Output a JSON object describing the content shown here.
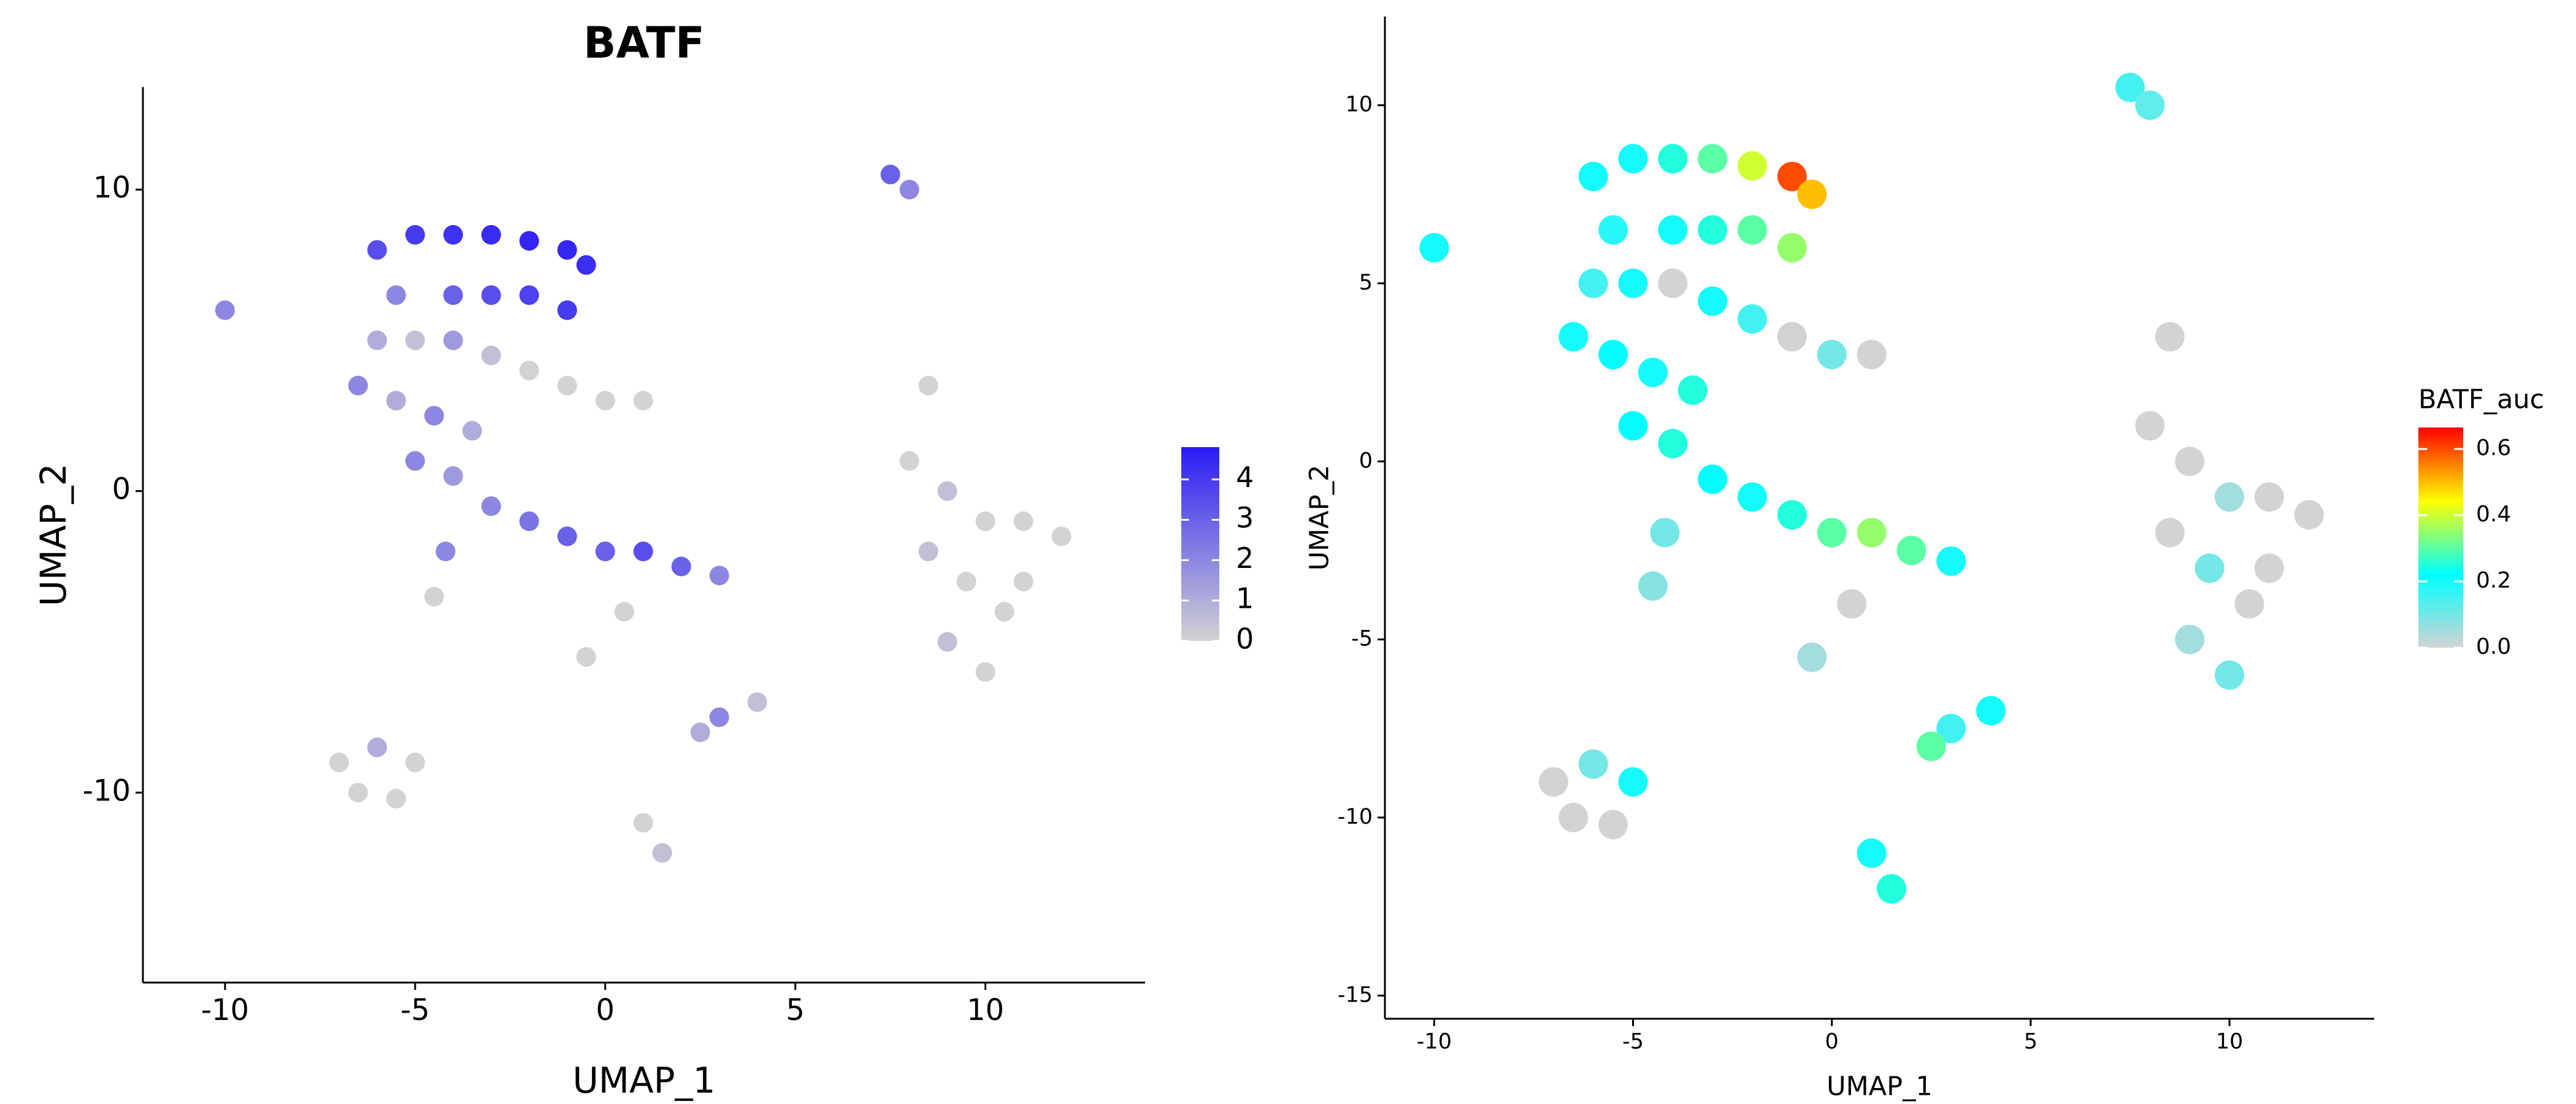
{
  "chart_data": [
    {
      "type": "scatter",
      "title": "BATF",
      "x_label": "UMAP_1",
      "y_label": "UMAP_2",
      "x": [
        -6,
        -5,
        -4,
        -3,
        -2,
        -1,
        -0.5,
        -5.5,
        -4,
        -3,
        -2,
        -1,
        -6,
        -5,
        -4,
        -3,
        -2,
        -1,
        0,
        1,
        -6.5,
        -5.5,
        -4.5,
        -3.5,
        -5,
        -4,
        -3,
        -2,
        -1,
        0,
        1,
        2,
        3,
        -4.2,
        -4.5,
        8,
        9,
        10,
        11,
        12,
        8.5,
        9.5,
        10.5,
        9,
        10,
        11,
        -7,
        -6,
        -5,
        -6.5,
        -5.5,
        3,
        4,
        2.5,
        1,
        1.5,
        7.5,
        8,
        0.5,
        -0.5,
        8.5,
        -10
      ],
      "y": [
        8,
        8.5,
        8.5,
        8.5,
        8.3,
        8,
        7.5,
        6.5,
        6.5,
        6.5,
        6.5,
        6,
        5,
        5,
        5,
        4.5,
        4,
        3.5,
        3,
        3,
        3.5,
        3,
        2.5,
        2,
        1,
        0.5,
        -0.5,
        -1,
        -1.5,
        -2,
        -2,
        -2.5,
        -2.8,
        -2,
        -3.5,
        1,
        0,
        -1,
        -1,
        -1.5,
        -2,
        -3,
        -4,
        -5,
        -6,
        -3,
        -9,
        -8.5,
        -9,
        -10,
        -10.2,
        -7.5,
        -7,
        -8,
        -11,
        -12,
        10.5,
        10,
        -4,
        -5.5,
        3.5,
        6
      ],
      "values": [
        3.5,
        4,
        4.2,
        4.4,
        4.5,
        4.5,
        4.3,
        2,
        3,
        3.5,
        3.8,
        4,
        1,
        0.5,
        1.5,
        0.5,
        0,
        0,
        0,
        0,
        2,
        1,
        2,
        1,
        2,
        1.5,
        2,
        2.5,
        3,
        3,
        3.5,
        3,
        2,
        2,
        0,
        0,
        0.5,
        0,
        0,
        0,
        0.5,
        0,
        0,
        0.5,
        0,
        0,
        0,
        1,
        0,
        0,
        0,
        2,
        0.5,
        1,
        0,
        0.5,
        3,
        2,
        0,
        0,
        0,
        2
      ],
      "xlim": [
        -12.16,
        14.2
      ],
      "ylim": [
        -16.3,
        13.4
      ],
      "xticks": [
        -10,
        -5,
        0,
        5,
        10
      ],
      "yticks": [
        -10,
        0,
        10
      ],
      "colorbar": {
        "lim": [
          0,
          4.8
        ],
        "ticks": [
          0,
          1,
          2,
          3,
          4
        ],
        "colors": [
          "#d3d3d3",
          "#2a1cf5"
        ]
      }
    },
    {
      "type": "scatter",
      "x_label": "UMAP_1",
      "y_label": "UMAP_2",
      "x": [
        -6,
        -5,
        -4,
        -3,
        -2,
        -1,
        -0.5,
        -5.5,
        -4,
        -3,
        -2,
        -1,
        -6,
        -5,
        -4,
        -3,
        -2,
        -1,
        0,
        1,
        -6.5,
        -5.5,
        -4.5,
        -3.5,
        -5,
        -4,
        -3,
        -2,
        -1,
        0,
        1,
        2,
        3,
        -4.2,
        -4.5,
        8,
        9,
        10,
        11,
        12,
        8.5,
        9.5,
        10.5,
        9,
        10,
        11,
        -7,
        -6,
        -5,
        -6.5,
        -5.5,
        3,
        4,
        2.5,
        1,
        1.5,
        7.5,
        8,
        0.5,
        -0.5,
        8.5,
        -10
      ],
      "y": [
        8,
        8.5,
        8.5,
        8.5,
        8.3,
        8,
        7.5,
        6.5,
        6.5,
        6.5,
        6.5,
        6,
        5,
        5,
        5,
        4.5,
        4,
        3.5,
        3,
        3,
        3.5,
        3,
        2.5,
        2,
        1,
        0.5,
        -0.5,
        -1,
        -1.5,
        -2,
        -2,
        -2.5,
        -2.8,
        -2,
        -3.5,
        1,
        0,
        -1,
        -1,
        -1.5,
        -2,
        -3,
        -4,
        -5,
        -6,
        -3,
        -9,
        -8.5,
        -9,
        -10,
        -10.2,
        -7.5,
        -7,
        -8,
        -11,
        -12,
        10.5,
        10,
        -4,
        -5.5,
        3.5,
        6
      ],
      "values": [
        0.2,
        0.2,
        0.25,
        0.3,
        0.4,
        0.6,
        0.5,
        0.18,
        0.2,
        0.25,
        0.3,
        0.35,
        0.15,
        0.2,
        0,
        0.2,
        0.15,
        0,
        0.1,
        0,
        0.2,
        0.22,
        0.2,
        0.25,
        0.22,
        0.25,
        0.22,
        0.2,
        0.25,
        0.3,
        0.35,
        0.3,
        0.2,
        0.1,
        0.08,
        0,
        0,
        0.05,
        0,
        0,
        0,
        0.1,
        0,
        0.05,
        0.1,
        0,
        0,
        0.1,
        0.2,
        0,
        0,
        0.15,
        0.2,
        0.3,
        0.2,
        0.25,
        0.15,
        0.12,
        0,
        0.05,
        0,
        0.2
      ],
      "xlim": [
        -11.24,
        13.64
      ],
      "ylim": [
        -15.65,
        12.49
      ],
      "xticks": [
        -10,
        -5,
        0,
        5,
        10
      ],
      "yticks": [
        -15,
        -10,
        -5,
        0,
        5,
        10
      ],
      "colorbar": {
        "title": "BATF_auc",
        "lim": [
          0,
          0.665
        ],
        "ticks": [
          {
            "value": 0,
            "label": "0.0"
          },
          {
            "value": 0.2,
            "label": "0.2"
          },
          {
            "value": 0.4,
            "label": "0.4"
          },
          {
            "value": 0.6,
            "label": "0.6"
          }
        ],
        "colors": [
          "#d3d3d3",
          "#00ffff",
          "#ffff00",
          "#ff0000"
        ]
      }
    }
  ]
}
